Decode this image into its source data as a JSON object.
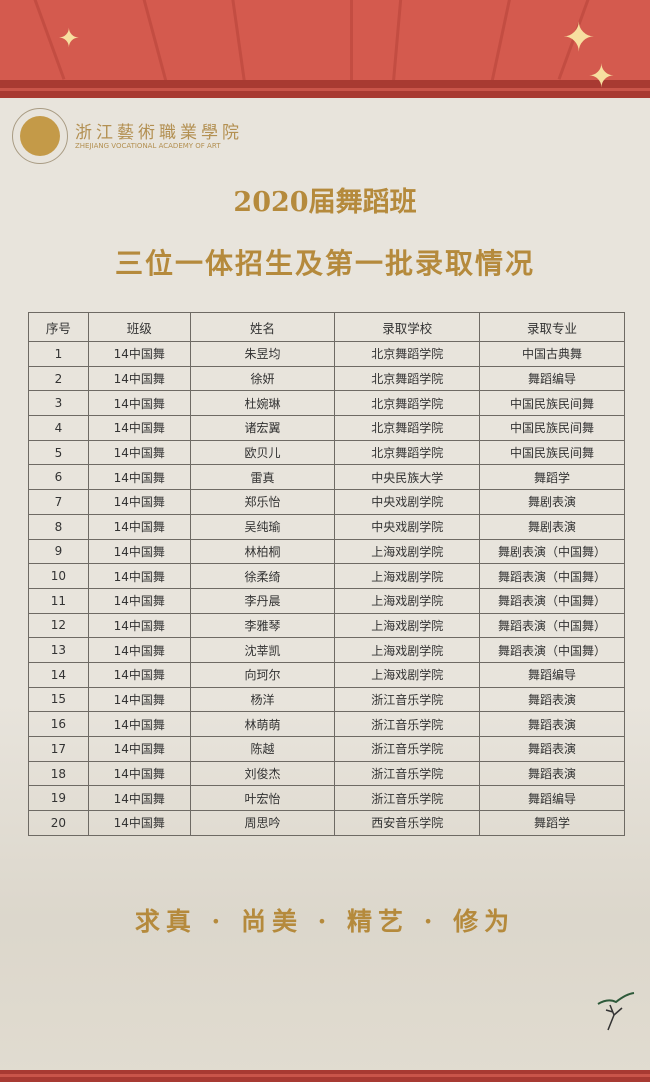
{
  "header": {
    "school_name_cn": "浙江藝術職業學院",
    "school_name_en": "ZHEJIANG VOCATIONAL ACADEMY OF ART",
    "title_line1": "2020届舞蹈班",
    "title_line2": "三位一体招生及第一批录取情况"
  },
  "table": {
    "columns": [
      "序号",
      "班级",
      "姓名",
      "录取学校",
      "录取专业"
    ],
    "rows": [
      [
        "1",
        "14中国舞",
        "朱昱均",
        "北京舞蹈学院",
        "中国古典舞"
      ],
      [
        "2",
        "14中国舞",
        "徐妍",
        "北京舞蹈学院",
        "舞蹈编导"
      ],
      [
        "3",
        "14中国舞",
        "杜婉琳",
        "北京舞蹈学院",
        "中国民族民间舞"
      ],
      [
        "4",
        "14中国舞",
        "诸宏翼",
        "北京舞蹈学院",
        "中国民族民间舞"
      ],
      [
        "5",
        "14中国舞",
        "欧贝儿",
        "北京舞蹈学院",
        "中国民族民间舞"
      ],
      [
        "6",
        "14中国舞",
        "雷真",
        "中央民族大学",
        "舞蹈学"
      ],
      [
        "7",
        "14中国舞",
        "郑乐怡",
        "中央戏剧学院",
        "舞剧表演"
      ],
      [
        "8",
        "14中国舞",
        "吴纯瑜",
        "中央戏剧学院",
        "舞剧表演"
      ],
      [
        "9",
        "14中国舞",
        "林柏桐",
        "上海戏剧学院",
        "舞剧表演（中国舞）"
      ],
      [
        "10",
        "14中国舞",
        "徐柔绮",
        "上海戏剧学院",
        "舞蹈表演（中国舞）"
      ],
      [
        "11",
        "14中国舞",
        "李丹晨",
        "上海戏剧学院",
        "舞蹈表演（中国舞）"
      ],
      [
        "12",
        "14中国舞",
        "李雅琴",
        "上海戏剧学院",
        "舞蹈表演（中国舞）"
      ],
      [
        "13",
        "14中国舞",
        "沈莘凯",
        "上海戏剧学院",
        "舞蹈表演（中国舞）"
      ],
      [
        "14",
        "14中国舞",
        "向珂尔",
        "上海戏剧学院",
        "舞蹈编导"
      ],
      [
        "15",
        "14中国舞",
        "杨洋",
        "浙江音乐学院",
        "舞蹈表演"
      ],
      [
        "16",
        "14中国舞",
        "林萌萌",
        "浙江音乐学院",
        "舞蹈表演"
      ],
      [
        "17",
        "14中国舞",
        "陈越",
        "浙江音乐学院",
        "舞蹈表演"
      ],
      [
        "18",
        "14中国舞",
        "刘俊杰",
        "浙江音乐学院",
        "舞蹈表演"
      ],
      [
        "19",
        "14中国舞",
        "叶宏怡",
        "浙江音乐学院",
        "舞蹈编导"
      ],
      [
        "20",
        "14中国舞",
        "周思吟",
        "西安音乐学院",
        "舞蹈学"
      ]
    ]
  },
  "footer": {
    "slogan": "求真 · 尚美 · 精艺 · 修为"
  },
  "colors": {
    "red": "#d45a4e",
    "dark_red": "#a83a32",
    "gold": "#b58a3c",
    "background": "#e8e4dc"
  }
}
